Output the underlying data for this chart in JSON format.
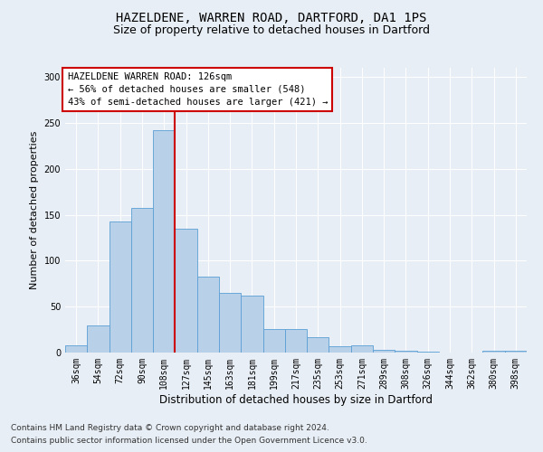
{
  "title1": "HAZELDENE, WARREN ROAD, DARTFORD, DA1 1PS",
  "title2": "Size of property relative to detached houses in Dartford",
  "xlabel": "Distribution of detached houses by size in Dartford",
  "ylabel": "Number of detached properties",
  "categories": [
    "36sqm",
    "54sqm",
    "72sqm",
    "90sqm",
    "108sqm",
    "127sqm",
    "145sqm",
    "163sqm",
    "181sqm",
    "199sqm",
    "217sqm",
    "235sqm",
    "253sqm",
    "271sqm",
    "289sqm",
    "308sqm",
    "326sqm",
    "344sqm",
    "362sqm",
    "380sqm",
    "398sqm"
  ],
  "values": [
    8,
    30,
    143,
    157,
    242,
    135,
    83,
    65,
    62,
    26,
    26,
    17,
    7,
    8,
    3,
    2,
    1,
    0,
    0,
    2,
    2
  ],
  "bar_color": "#b8d0e8",
  "bar_edge_color": "#5a9fd4",
  "vline_x": 4.5,
  "vline_color": "#cc0000",
  "annotation_title": "HAZELDENE WARREN ROAD: 126sqm",
  "annotation_line1": "← 56% of detached houses are smaller (548)",
  "annotation_line2": "43% of semi-detached houses are larger (421) →",
  "annotation_box_color": "#ffffff",
  "annotation_box_edge": "#cc0000",
  "ylim": [
    0,
    310
  ],
  "yticks": [
    0,
    50,
    100,
    150,
    200,
    250,
    300
  ],
  "background_color": "#e8eef5",
  "plot_bg_color": "#e8eef5",
  "footer1": "Contains HM Land Registry data © Crown copyright and database right 2024.",
  "footer2": "Contains public sector information licensed under the Open Government Licence v3.0.",
  "title1_fontsize": 10,
  "title2_fontsize": 9,
  "xlabel_fontsize": 8.5,
  "ylabel_fontsize": 8,
  "tick_fontsize": 7,
  "annotation_fontsize": 7.5,
  "footer_fontsize": 6.5
}
